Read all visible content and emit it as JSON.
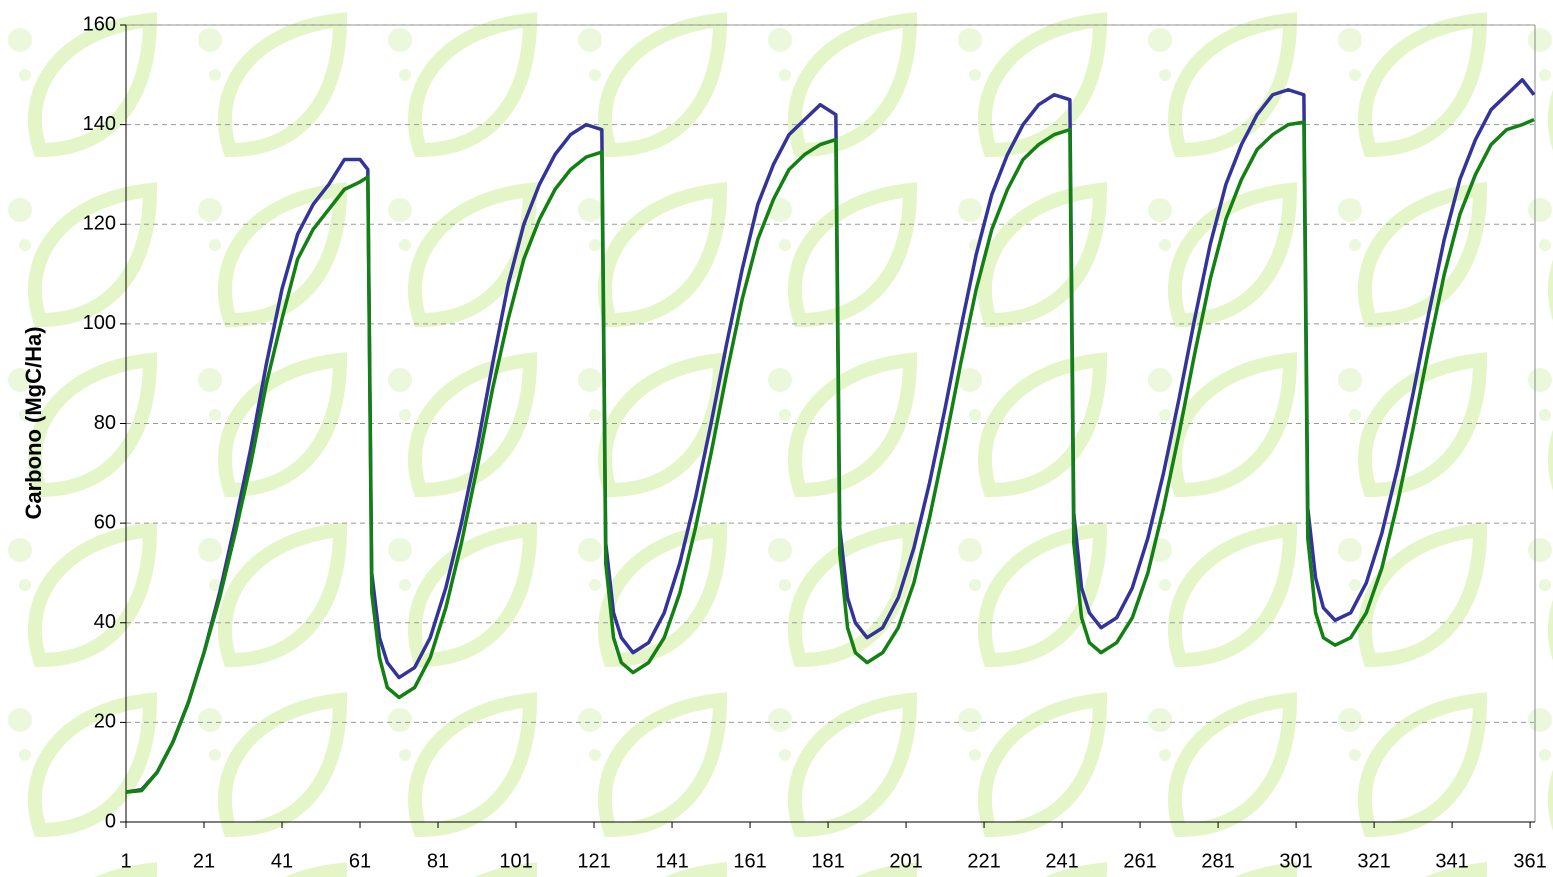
{
  "chart_data": {
    "type": "line",
    "y_label": "Carbono (MgC/Ha)",
    "x": [
      1,
      5,
      9,
      13,
      17,
      21,
      25,
      29,
      33,
      37,
      41,
      45,
      49,
      53,
      57,
      61,
      63,
      64,
      66,
      68,
      71,
      75,
      79,
      83,
      87,
      91,
      95,
      99,
      103,
      107,
      111,
      115,
      119,
      123,
      124,
      126,
      128,
      131,
      135,
      139,
      143,
      147,
      151,
      155,
      159,
      163,
      167,
      171,
      175,
      179,
      183,
      184,
      186,
      188,
      191,
      195,
      199,
      203,
      207,
      211,
      215,
      219,
      223,
      227,
      231,
      235,
      239,
      243,
      244,
      246,
      248,
      251,
      255,
      259,
      263,
      267,
      271,
      275,
      279,
      283,
      287,
      291,
      295,
      299,
      303,
      304,
      306,
      308,
      311,
      315,
      319,
      323,
      327,
      331,
      335,
      339,
      343,
      347,
      351,
      355,
      359,
      362
    ],
    "series": [
      {
        "color": "#333399",
        "values": [
          6,
          6.5,
          10,
          16,
          24,
          34,
          46,
          60,
          75,
          92,
          107,
          118,
          124,
          128,
          133,
          133,
          131,
          50,
          37,
          32,
          29,
          31,
          37,
          47,
          60,
          75,
          92,
          108,
          120,
          128,
          134,
          138,
          140,
          139,
          56,
          42,
          37,
          34,
          36,
          42,
          52,
          65,
          80,
          96,
          111,
          124,
          132,
          138,
          141,
          144,
          142,
          59,
          45,
          40,
          37,
          39,
          45,
          55,
          68,
          83,
          99,
          114,
          126,
          134,
          140,
          144,
          146,
          145,
          62,
          47,
          42,
          39,
          41,
          47,
          57,
          70,
          85,
          101,
          116,
          128,
          136,
          142,
          146,
          147,
          146,
          63,
          49,
          43,
          40.5,
          42,
          48,
          58,
          71,
          86,
          102,
          117,
          129,
          137,
          143,
          146,
          149,
          146
        ]
      },
      {
        "color": "#138013",
        "values": [
          6,
          6.3,
          10,
          16,
          24,
          34,
          45,
          58,
          72,
          88,
          101,
          113,
          119,
          123,
          127,
          128.5,
          129.5,
          46,
          33,
          27,
          25,
          27,
          33,
          43,
          56,
          71,
          87,
          101,
          113,
          121,
          127,
          131,
          133.5,
          134.5,
          52,
          37,
          32,
          30,
          32,
          37,
          46,
          59,
          74,
          90,
          105,
          117,
          125,
          131,
          134,
          136,
          137,
          54,
          39,
          34,
          32,
          34,
          39,
          48,
          61,
          76,
          92,
          107,
          119,
          127,
          133,
          136,
          138,
          139,
          56,
          41,
          36,
          34,
          36,
          41,
          50,
          63,
          78,
          94,
          109,
          121,
          129,
          135,
          138,
          140,
          140.5,
          57,
          42,
          37,
          35.5,
          37,
          42,
          51,
          64,
          79,
          95,
          110,
          122,
          130,
          136,
          139,
          140,
          141
        ]
      }
    ],
    "xlim": [
      1,
      362
    ],
    "xticks": [
      1,
      21,
      41,
      61,
      81,
      101,
      121,
      141,
      161,
      181,
      201,
      221,
      241,
      261,
      281,
      301,
      321,
      341,
      361
    ],
    "ylim": [
      0,
      160
    ],
    "yticks": [
      0,
      20,
      40,
      60,
      80,
      100,
      120,
      140,
      160
    ],
    "grid": true
  }
}
